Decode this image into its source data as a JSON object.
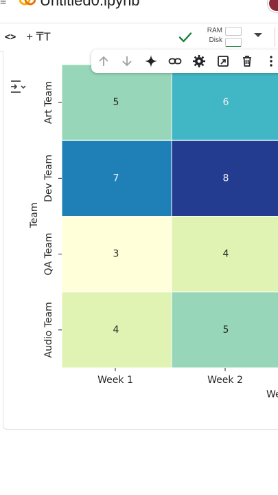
{
  "header": {
    "doc_title": "Untitled0.ipynb"
  },
  "toolbar": {
    "code_icon": "code-icon",
    "add_text_label": "+ ₸T",
    "connected_icon": "check-icon",
    "ram_label": "RAM",
    "disk_label": "Disk",
    "accent_color": "#188038"
  },
  "cell_toolbar": {
    "buttons": [
      "arrow-up-icon",
      "arrow-down-icon",
      "sparkle-icon",
      "link-icon",
      "gear-icon",
      "mirror-cell-icon",
      "trash-icon",
      "more-vert-icon"
    ]
  },
  "chart_data": {
    "type": "heatmap",
    "title": "",
    "xlabel": "We",
    "ylabel": "Team",
    "x_categories": [
      "Week 1",
      "Week 2"
    ],
    "y_categories": [
      "Art Team",
      "Dev Team",
      "QA Team",
      "Audio Team"
    ],
    "values": [
      [
        5,
        6
      ],
      [
        7,
        8
      ],
      [
        3,
        4
      ],
      [
        4,
        5
      ]
    ],
    "colormap": "YlGnBu",
    "annotated": true,
    "colors": {
      "3": "#ffffd9",
      "4": "#e0f3b2",
      "5": "#97d6b8",
      "6": "#41b6c4",
      "7": "#1f80b8",
      "8": "#243c8f"
    }
  }
}
